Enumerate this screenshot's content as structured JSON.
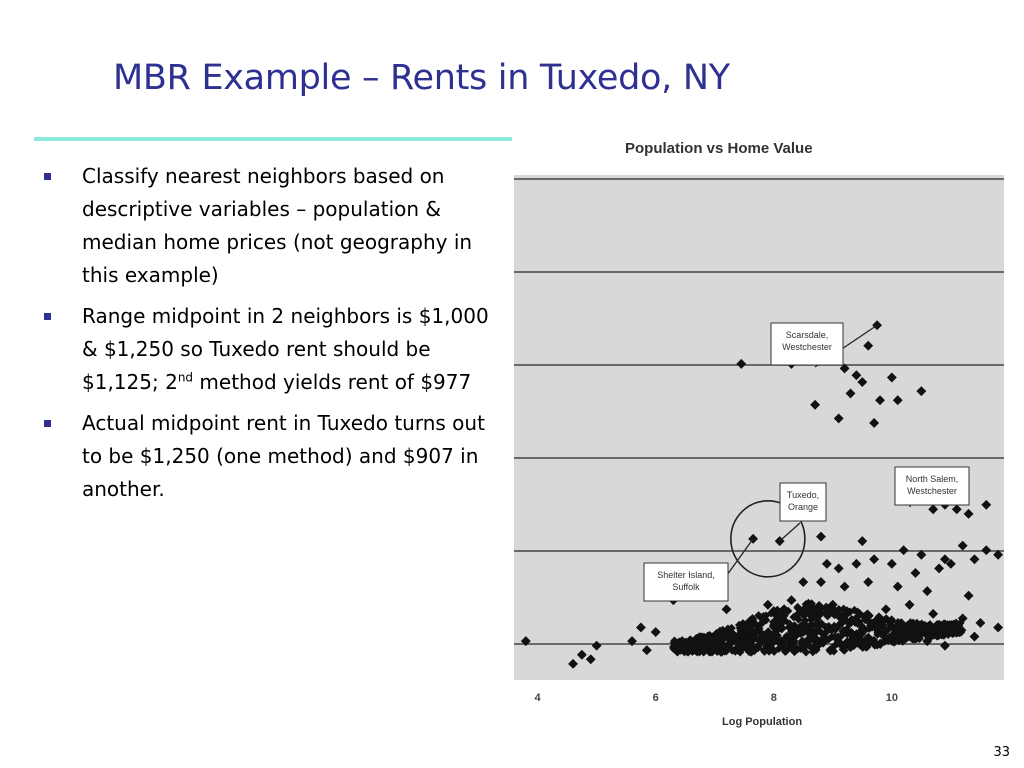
{
  "slide": {
    "title": "MBR Example – Rents in Tuxedo, NY",
    "page_number": "33"
  },
  "bullets": [
    {
      "text": "Classify nearest neighbors based on descriptive variables – population & median home prices (not geography in this example)"
    },
    {
      "before": "Range midpoint in 2 neighbors is $1,000 & $1,250 so Tuxedo rent should be $1,125; 2",
      "sup": "nd",
      "after": " method yields rent of $977"
    },
    {
      "text": "Actual midpoint rent in Tuxedo turns out to be $1,250 (one method) and $907 in another."
    }
  ],
  "colors": {
    "title": "#2e3192",
    "rule": "#8fe8dc",
    "plot_bg": "#d8d8d8",
    "marker": "#111111"
  },
  "chart_data": {
    "type": "scatter",
    "title": "Population  vs Home Value",
    "xlabel": "Log Population",
    "ylabel": "",
    "xlim": [
      3.6,
      11.9
    ],
    "xticks": [
      "4",
      "6",
      "8",
      "10"
    ],
    "grid": "horizontal",
    "annotations": [
      {
        "lines": [
          "Scarsdale,",
          "Westchester"
        ],
        "x": 9.75,
        "y": 0.725
      },
      {
        "lines": [
          "North Salem,",
          "Westchester"
        ],
        "x": 10.35,
        "y": 0.37
      },
      {
        "lines": [
          "Tuxedo,",
          "Orange"
        ],
        "x": 8.1,
        "y": 0.25
      },
      {
        "lines": [
          "Shelter Island,",
          "Suffolk"
        ],
        "x": 7.65,
        "y": 0.255
      }
    ],
    "points": [
      [
        9.75,
        0.725
      ],
      [
        9.6,
        0.68
      ],
      [
        7.45,
        0.64
      ],
      [
        8.3,
        0.64
      ],
      [
        9.2,
        0.63
      ],
      [
        9.4,
        0.615
      ],
      [
        9.5,
        0.6
      ],
      [
        10.0,
        0.61
      ],
      [
        9.3,
        0.575
      ],
      [
        9.8,
        0.56
      ],
      [
        10.1,
        0.56
      ],
      [
        10.5,
        0.58
      ],
      [
        8.7,
        0.55
      ],
      [
        9.1,
        0.52
      ],
      [
        9.7,
        0.51
      ],
      [
        10.35,
        0.37
      ],
      [
        10.7,
        0.32
      ],
      [
        10.9,
        0.33
      ],
      [
        11.1,
        0.32
      ],
      [
        11.3,
        0.31
      ],
      [
        11.6,
        0.33
      ],
      [
        7.65,
        0.255
      ],
      [
        8.1,
        0.25
      ],
      [
        8.8,
        0.26
      ],
      [
        9.5,
        0.25
      ],
      [
        10.2,
        0.23
      ],
      [
        10.5,
        0.22
      ],
      [
        10.9,
        0.21
      ],
      [
        11.2,
        0.24
      ],
      [
        11.6,
        0.23
      ],
      [
        8.9,
        0.2
      ],
      [
        9.1,
        0.19
      ],
      [
        9.4,
        0.2
      ],
      [
        9.7,
        0.21
      ],
      [
        10.0,
        0.2
      ],
      [
        10.4,
        0.18
      ],
      [
        10.8,
        0.19
      ],
      [
        11.0,
        0.2
      ],
      [
        11.4,
        0.21
      ],
      [
        11.8,
        0.22
      ],
      [
        8.5,
        0.16
      ],
      [
        8.8,
        0.16
      ],
      [
        9.2,
        0.15
      ],
      [
        9.6,
        0.16
      ],
      [
        10.1,
        0.15
      ],
      [
        10.6,
        0.14
      ],
      [
        11.3,
        0.13
      ],
      [
        6.3,
        0.12
      ],
      [
        7.2,
        0.1
      ],
      [
        7.9,
        0.11
      ],
      [
        8.3,
        0.12
      ],
      [
        9.0,
        0.11
      ],
      [
        9.9,
        0.1
      ],
      [
        10.3,
        0.11
      ],
      [
        10.7,
        0.09
      ],
      [
        11.2,
        0.08
      ],
      [
        11.5,
        0.07
      ],
      [
        11.8,
        0.06
      ],
      [
        3.8,
        0.03
      ],
      [
        4.6,
        -0.02
      ],
      [
        4.75,
        0.0
      ],
      [
        4.9,
        -0.01
      ],
      [
        5.0,
        0.02
      ],
      [
        5.6,
        0.03
      ],
      [
        5.75,
        0.06
      ],
      [
        5.85,
        0.01
      ],
      [
        6.0,
        0.05
      ],
      [
        10.0,
        0.04
      ],
      [
        10.3,
        0.05
      ],
      [
        10.6,
        0.03
      ],
      [
        10.9,
        0.02
      ],
      [
        11.1,
        0.05
      ],
      [
        11.4,
        0.04
      ]
    ]
  }
}
